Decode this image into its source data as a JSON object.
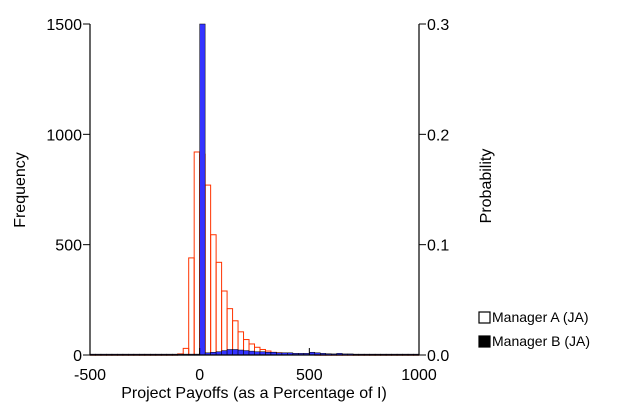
{
  "chart_data": {
    "type": "bar",
    "xlabel": "Project Payoffs (as a Percentage of I)",
    "ylabel": "Frequency",
    "y2label": "Probability",
    "xlim": [
      -500,
      1000
    ],
    "ylim": [
      0,
      1500
    ],
    "y2lim": [
      0,
      0.3
    ],
    "xticks": [
      -500,
      0,
      500,
      1000
    ],
    "xtick_labels": [
      "-500",
      "0",
      "500",
      "1000"
    ],
    "yticks": [
      0,
      500,
      1000,
      1500
    ],
    "ytick_labels": [
      "0",
      "500",
      "1000",
      "1500"
    ],
    "y2ticks": [
      0,
      0.1,
      0.2,
      0.3
    ],
    "y2tick_labels": [
      "0.0",
      "0.1",
      "0.2",
      "0.3"
    ],
    "bin_width": 25,
    "grid": false,
    "legend_position": "bottom-right",
    "series": [
      {
        "name": "Manager A (JA)",
        "axis": "left",
        "style": "outline",
        "color": "#ff3300",
        "bin_starts": [
          -500,
          -475,
          -450,
          -425,
          -400,
          -375,
          -350,
          -325,
          -300,
          -275,
          -250,
          -225,
          -200,
          -175,
          -150,
          -125,
          -100,
          -75,
          -50,
          -25,
          0,
          25,
          50,
          75,
          100,
          125,
          150,
          175,
          200,
          225,
          250,
          275,
          300,
          325,
          350,
          375,
          400,
          425,
          450,
          475,
          500,
          525,
          550,
          575,
          600,
          625,
          650,
          675,
          700,
          725,
          750,
          775,
          800,
          825,
          850,
          875,
          900,
          925,
          950,
          975
        ],
        "values": [
          2,
          2,
          2,
          2,
          2,
          2,
          2,
          2,
          2,
          2,
          2,
          2,
          2,
          2,
          2,
          2,
          5,
          30,
          440,
          920,
          910,
          770,
          545,
          420,
          290,
          210,
          155,
          105,
          70,
          50,
          35,
          25,
          18,
          12,
          10,
          8,
          6,
          5,
          4,
          3,
          3,
          2,
          2,
          2,
          2,
          2,
          2,
          2,
          2,
          2,
          2,
          2,
          2,
          2,
          2,
          2,
          2,
          2,
          2,
          2
        ]
      },
      {
        "name": "Manager B (JA)",
        "axis": "right",
        "style": "filled",
        "color": "#3333ff",
        "bin_starts": [
          -500,
          -475,
          -450,
          -425,
          -400,
          -375,
          -350,
          -325,
          -300,
          -275,
          -250,
          -225,
          -200,
          -175,
          -150,
          -125,
          -100,
          -75,
          -50,
          -25,
          0,
          25,
          50,
          75,
          100,
          125,
          150,
          175,
          200,
          225,
          250,
          275,
          300,
          325,
          350,
          375,
          400,
          425,
          450,
          475,
          500,
          525,
          550,
          575,
          600,
          625,
          650,
          675,
          700,
          725,
          750,
          775,
          800,
          825,
          850,
          875,
          900,
          925,
          950,
          975
        ],
        "values": [
          0.0008,
          0.0008,
          0.0008,
          0.0008,
          0.0008,
          0.0008,
          0.0008,
          0.0008,
          0.0008,
          0.0008,
          0.0008,
          0.0008,
          0.0008,
          0.0008,
          0.0008,
          0.0008,
          0.0008,
          0.0008,
          0.0008,
          0.0008,
          0.3,
          0.002,
          0.0025,
          0.003,
          0.004,
          0.005,
          0.005,
          0.0045,
          0.004,
          0.0035,
          0.003,
          0.003,
          0.0025,
          0.0025,
          0.002,
          0.002,
          0.002,
          0.0015,
          0.0015,
          0.0015,
          0.0025,
          0.002,
          0.0015,
          0.0012,
          0.001,
          0.0015,
          0.001,
          0.001,
          0.0008,
          0.0008,
          0.0008,
          0.0008,
          0.0008,
          0.0008,
          0.0008,
          0.0008,
          0.0008,
          0.0008,
          0.0008,
          0.0008
        ]
      }
    ]
  }
}
